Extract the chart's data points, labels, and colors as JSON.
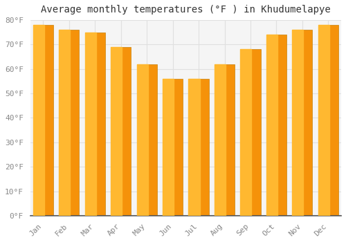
{
  "title": "Average monthly temperatures (°F ) in Khudumelapye",
  "months": [
    "Jan",
    "Feb",
    "Mar",
    "Apr",
    "May",
    "Jun",
    "Jul",
    "Aug",
    "Sep",
    "Oct",
    "Nov",
    "Dec"
  ],
  "values": [
    78,
    76,
    75,
    69,
    62,
    56,
    56,
    62,
    68,
    74,
    76,
    78
  ],
  "bar_color_left": "#FFB830",
  "bar_color_right": "#F5920A",
  "bar_edge_color": "#C8820A",
  "background_color": "#FFFFFF",
  "plot_bg_color": "#F5F5F5",
  "grid_color": "#E0E0E0",
  "ylim": [
    0,
    80
  ],
  "yticks": [
    0,
    10,
    20,
    30,
    40,
    50,
    60,
    70,
    80
  ],
  "ytick_labels": [
    "0°F",
    "10°F",
    "20°F",
    "30°F",
    "40°F",
    "50°F",
    "60°F",
    "70°F",
    "80°F"
  ],
  "title_fontsize": 10,
  "tick_fontsize": 8,
  "tick_color": "#888888",
  "spine_color": "#555555",
  "bar_width": 0.78
}
